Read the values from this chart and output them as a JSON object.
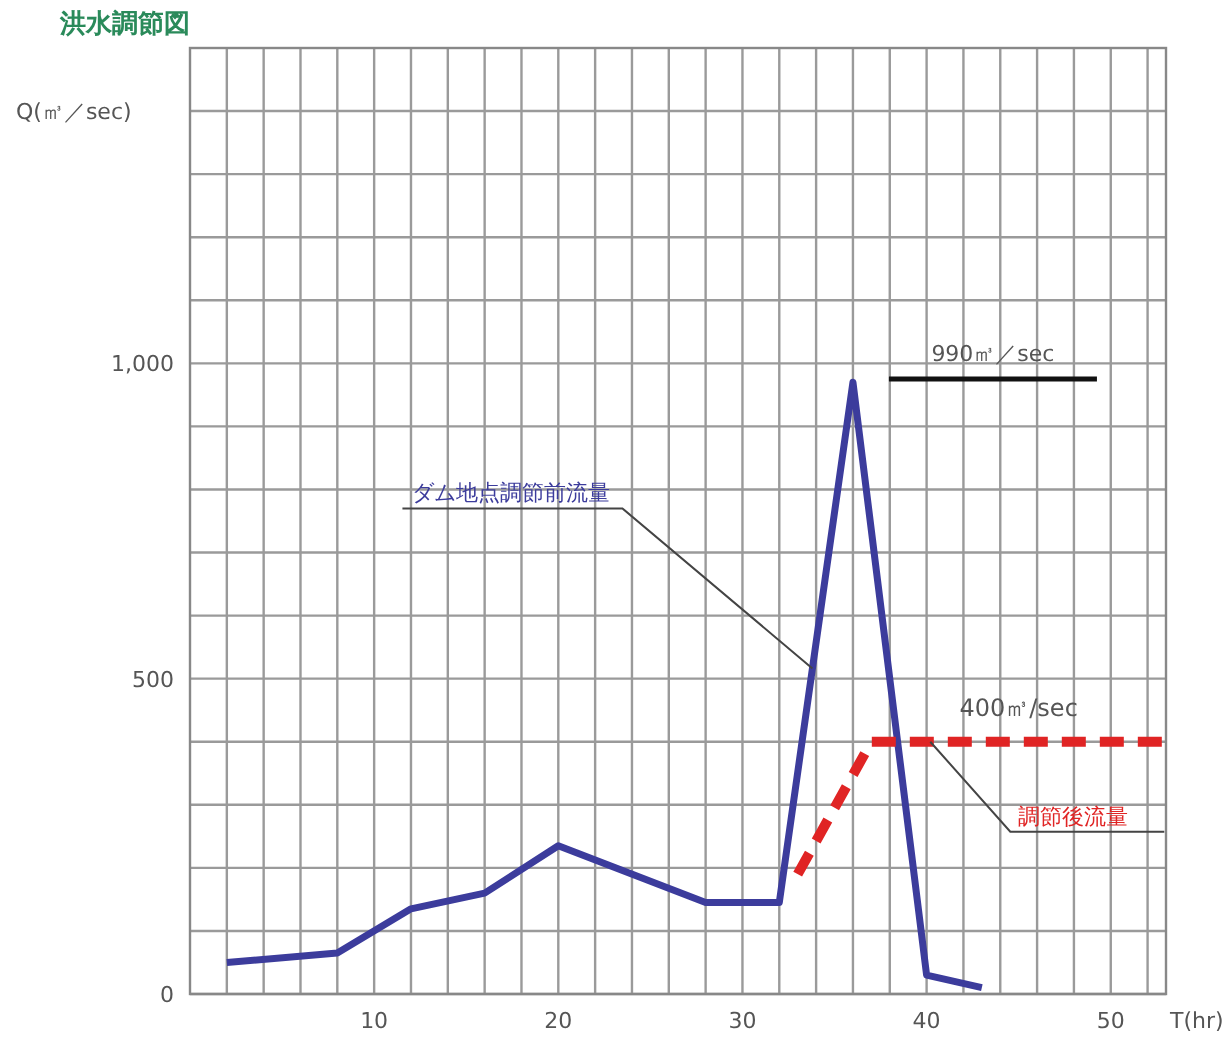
{
  "chart_data": {
    "type": "line",
    "title": "洪水調節図",
    "xlabel": "T(hr)",
    "ylabel": "Q(㎥／sec)",
    "xlim": [
      0,
      53
    ],
    "ylim": [
      0,
      1500
    ],
    "xticks": [
      {
        "value": 2,
        "label": null
      },
      {
        "value": 4,
        "label": null
      },
      {
        "value": 6,
        "label": null
      },
      {
        "value": 8,
        "label": null
      },
      10,
      {
        "value": 12,
        "label": null
      },
      {
        "value": 14,
        "label": null
      },
      {
        "value": 16,
        "label": null
      },
      {
        "value": 18,
        "label": null
      },
      20,
      {
        "value": 22,
        "label": null
      },
      {
        "value": 24,
        "label": null
      },
      {
        "value": 26,
        "label": null
      },
      {
        "value": 28,
        "label": null
      },
      30,
      {
        "value": 32,
        "label": null
      },
      {
        "value": 34,
        "label": null
      },
      {
        "value": 36,
        "label": null
      },
      {
        "value": 38,
        "label": null
      },
      40,
      {
        "value": 42,
        "label": null
      },
      {
        "value": 44,
        "label": null
      },
      {
        "value": 46,
        "label": null
      },
      {
        "value": 48,
        "label": null
      },
      50,
      {
        "value": 52,
        "label": null
      }
    ],
    "yticks": [
      0,
      {
        "value": 100,
        "label": null
      },
      {
        "value": 200,
        "label": null
      },
      {
        "value": 300,
        "label": null
      },
      {
        "value": 400,
        "label": null
      },
      500,
      {
        "value": 600,
        "label": null
      },
      {
        "value": 700,
        "label": null
      },
      {
        "value": 800,
        "label": null
      },
      {
        "value": 900,
        "label": null
      },
      {
        "value": 1000,
        "label": "1,000"
      },
      {
        "value": 1100,
        "label": null
      },
      {
        "value": 1200,
        "label": null
      },
      {
        "value": 1300,
        "label": null
      },
      {
        "value": 1400,
        "label": null
      }
    ],
    "grid": true,
    "series": [
      {
        "name": "ダム地点調節前流量",
        "color": "#3c3c9c",
        "line_style": "solid",
        "x": [
          2,
          8,
          12,
          16,
          20,
          28,
          32,
          36,
          40,
          43
        ],
        "values": [
          50,
          65,
          135,
          160,
          235,
          145,
          145,
          970,
          30,
          10
        ]
      },
      {
        "name": "調節後流量",
        "color": "#e02424",
        "line_style": "dashed",
        "x": [
          33,
          37,
          53
        ],
        "values": [
          190,
          400,
          400
        ]
      }
    ],
    "ref_lines": [
      {
        "axis": "y",
        "value": 975,
        "label": "990㎥／sec",
        "color": "#111111"
      }
    ],
    "annotations": [
      {
        "text": "400㎥/sec",
        "x": 45,
        "y": 400
      }
    ]
  }
}
